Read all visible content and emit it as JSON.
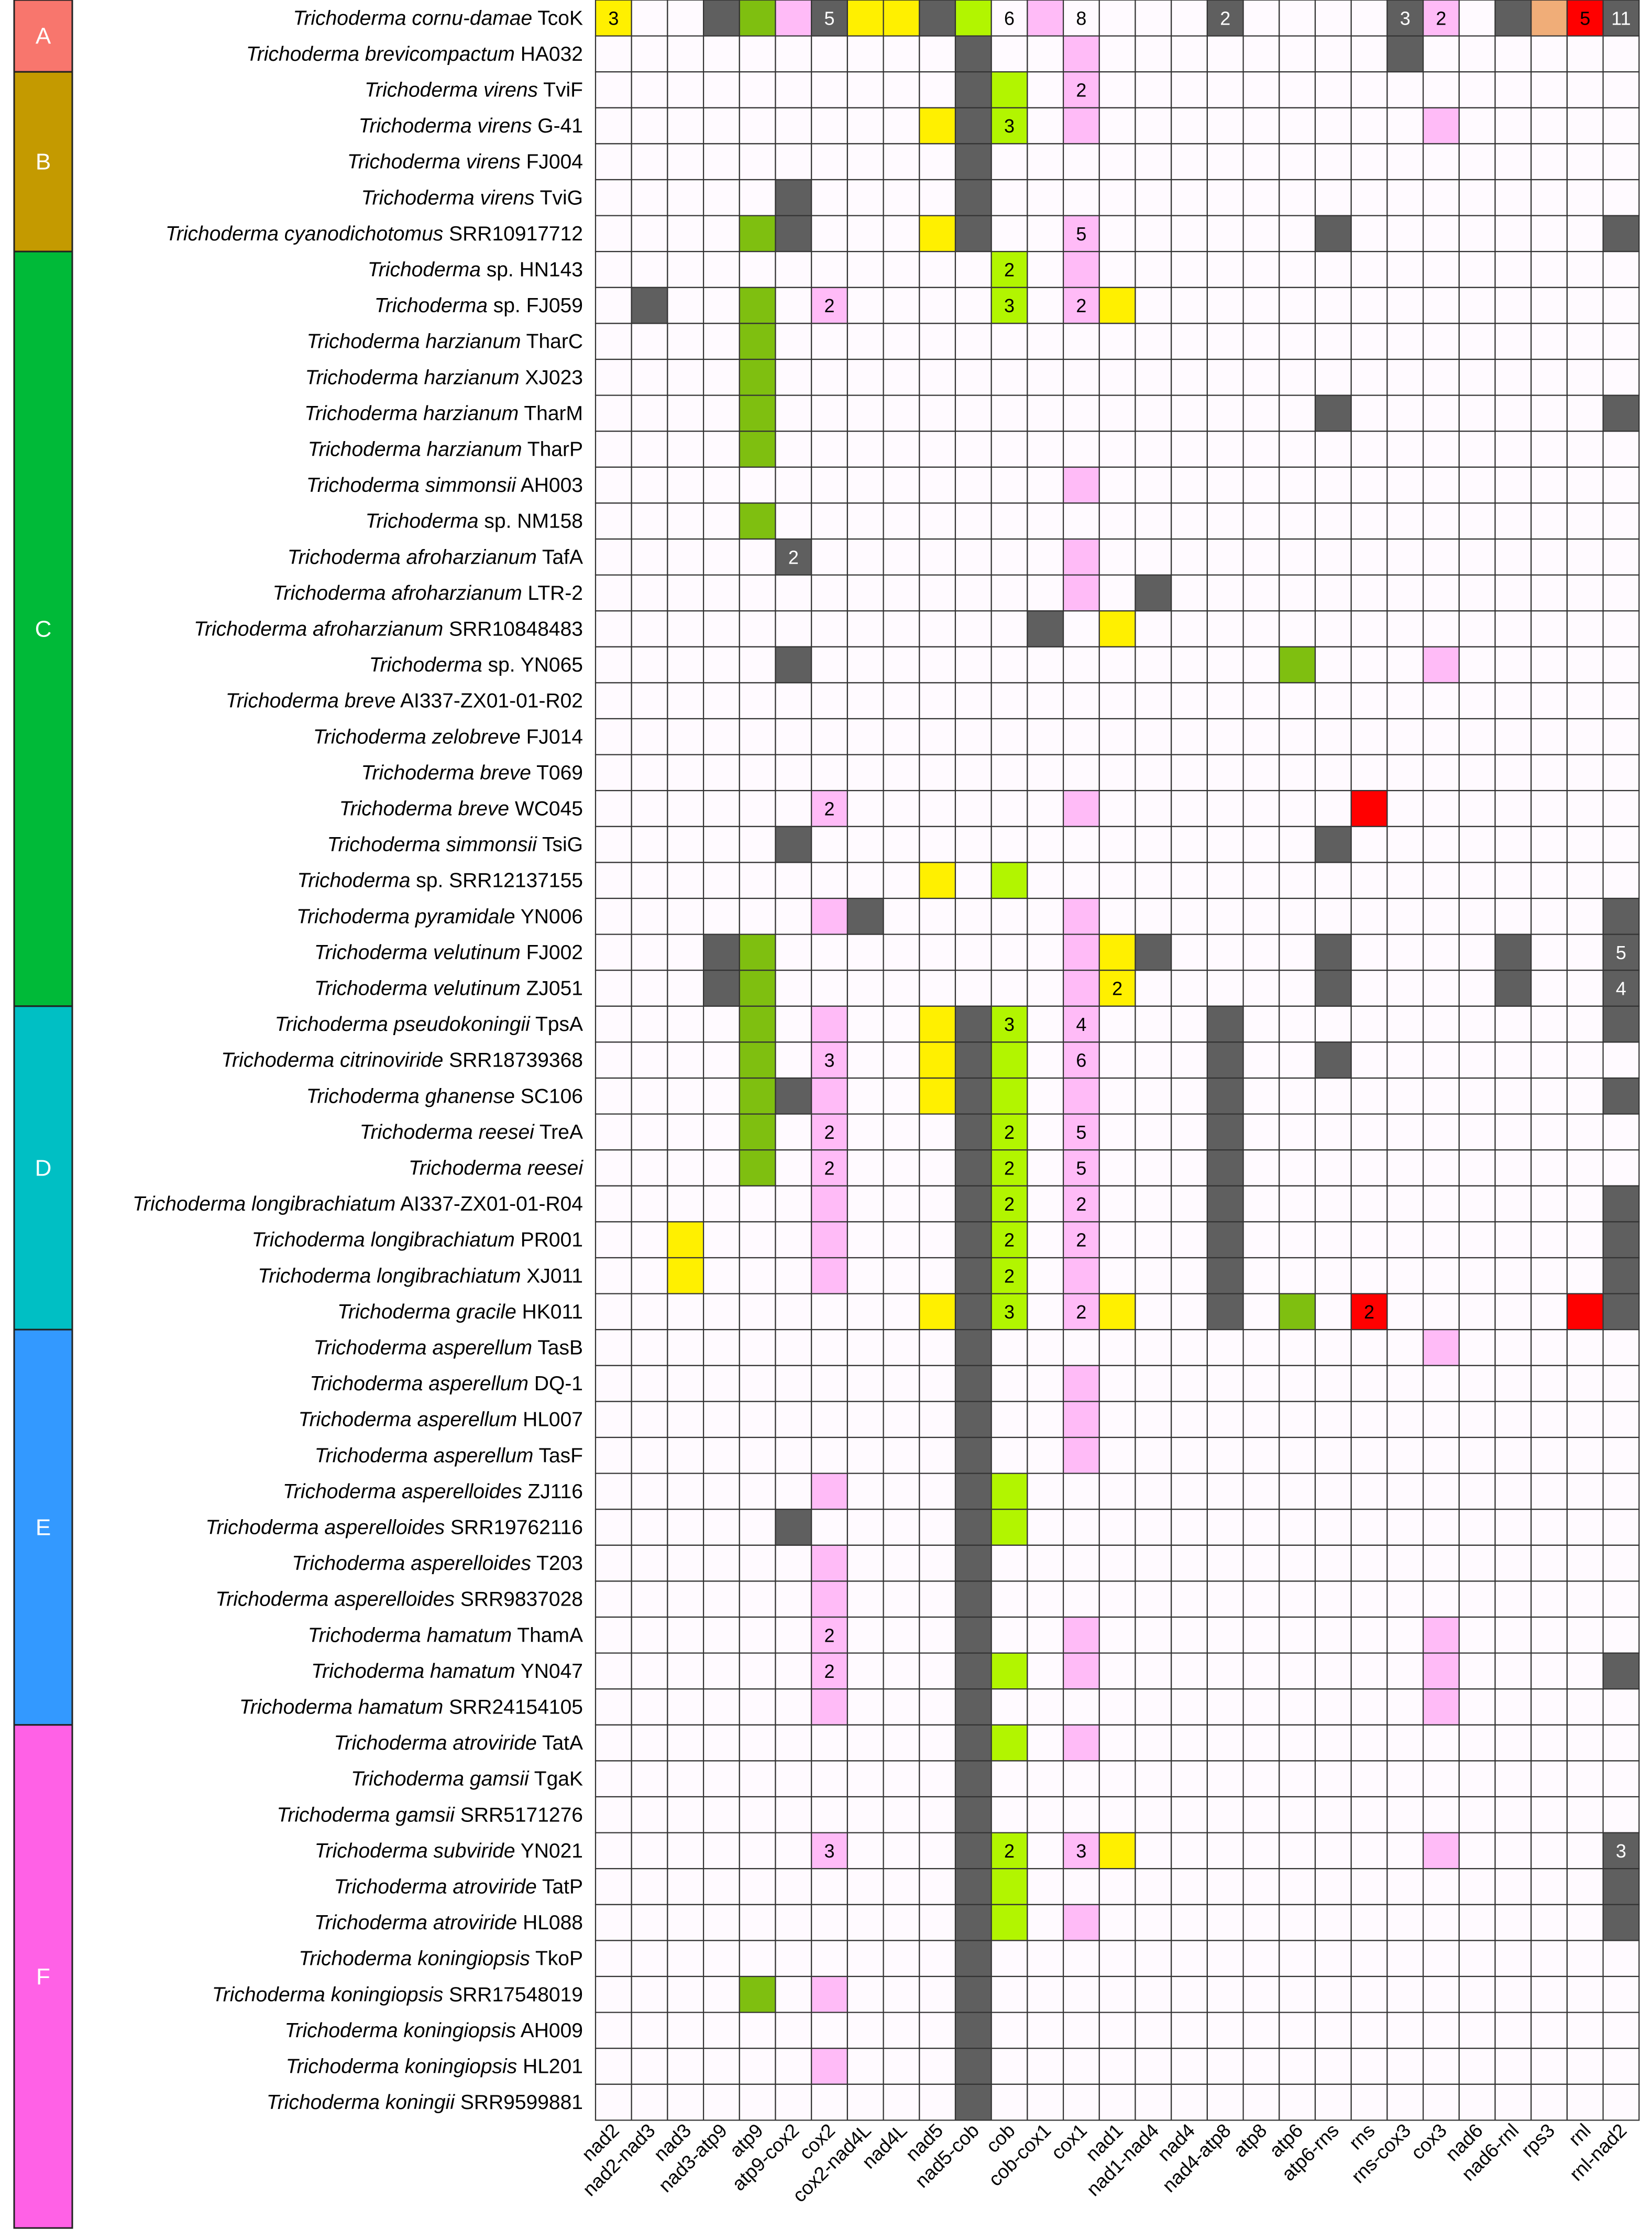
{
  "chart_data": {
    "type": "heatmap",
    "title": "",
    "xlabel": "",
    "ylabel": "",
    "legend": "none",
    "columns": [
      "nad2",
      "nad2-nad3",
      "nad3",
      "nad3-atp9",
      "atp9",
      "atp9-cox2",
      "cox2",
      "cox2-nad4L",
      "nad4L",
      "nad5",
      "nad5-cob",
      "cob",
      "cob-cox1",
      "cox1",
      "nad1",
      "nad1-nad4",
      "nad4",
      "nad4-atp8",
      "atp8",
      "atp6",
      "atp6-rns",
      "rns",
      "rns-cox3",
      "cox3",
      "nad6",
      "nad6-rnl",
      "rps3",
      "rnl",
      "rnl-nad2"
    ],
    "groups": [
      {
        "label": "A",
        "color": "#F8766D",
        "start": 0,
        "end": 1
      },
      {
        "label": "B",
        "color": "#C49A00",
        "start": 2,
        "end": 6
      },
      {
        "label": "C",
        "color": "#00BA38",
        "start": 7,
        "end": 27
      },
      {
        "label": "D",
        "color": "#00BFC4",
        "start": 28,
        "end": 36
      },
      {
        "label": "E",
        "color": "#3399FF",
        "start": 37,
        "end": 47
      },
      {
        "label": "F",
        "color": "#FF61E6",
        "start": 48,
        "end": 61
      }
    ],
    "color_key": {
      "W": "#FFFAFF",
      "G": "#5F5F5F",
      "Y": "#FFF000",
      "L": "#B2F500",
      "O": "#7FBF10",
      "P": "#FFBBF7",
      "R": "#FF0000",
      "T": "#F0AD78"
    },
    "rows": [
      {
        "species": "Trichoderma cornu-damae",
        "strain": "TcoK",
        "cells": "YWWGOPGYYGLWPWWWWGWWWWGPWGTRG",
        "counts": {
          "0": "3",
          "6": "5",
          "11": "6",
          "13": "8",
          "17": "2",
          "22": "3",
          "23": "2",
          "27": "5",
          "28": "11"
        }
      },
      {
        "species": "Trichoderma brevicompactum",
        "strain": "HA032",
        "cells": "WWWWWWWWWWGWWPWWWWWWWWGWWWWWW",
        "counts": {}
      },
      {
        "species": "Trichoderma virens",
        "strain": "TviF",
        "cells": "WWWWWWWWWWGLWPWWWWWWWWWWWWWWW",
        "counts": {
          "13": "2"
        }
      },
      {
        "species": "Trichoderma virens",
        "strain": "G-41",
        "cells": "WWWWWWWWWYGLWPWWWWWWWWWPWWWWW",
        "counts": {
          "11": "3"
        }
      },
      {
        "species": "Trichoderma virens",
        "strain": "FJ004",
        "cells": "WWWWWWWWWWGWWWWWWWWWWWWWWWWWW",
        "counts": {}
      },
      {
        "species": "Trichoderma virens",
        "strain": "TviG",
        "cells": "WWWWWGWWWWGWWWWWWWWWWWWWWWWWW",
        "counts": {}
      },
      {
        "species": "Trichoderma cyanodichotomus",
        "strain": "SRR10917712",
        "cells": "WWWWOGWWWYGWWPWWWWWWGWWWWWWWG",
        "counts": {
          "13": "5"
        }
      },
      {
        "species": "Trichoderma",
        "strain": "sp. HN143",
        "cells": "WWWWWWWWWWWLWPWWWWWWWWWWWWWWW",
        "counts": {
          "11": "2"
        }
      },
      {
        "species": "Trichoderma",
        "strain": "sp. FJ059",
        "cells": "WGWWOWPWWWWLWPYWWWWWWWWWWWWWW",
        "counts": {
          "6": "2",
          "11": "3",
          "13": "2"
        }
      },
      {
        "species": "Trichoderma harzianum",
        "strain": "TharC",
        "cells": "WWWWOWWWWWWWWWWWWWWWWWWWWWWWW",
        "counts": {}
      },
      {
        "species": "Trichoderma harzianum",
        "strain": "XJ023",
        "cells": "WWWWOWWWWWWWWWWWWWWWWWWWWWWWW",
        "counts": {}
      },
      {
        "species": "Trichoderma harzianum",
        "strain": "TharM",
        "cells": "WWWWOWWWWWWWWWWWWWWWGWWWWWWWG",
        "counts": {}
      },
      {
        "species": "Trichoderma harzianum",
        "strain": "TharP",
        "cells": "WWWWOWWWWWWWWWWWWWWWWWWWWWWWW",
        "counts": {}
      },
      {
        "species": "Trichoderma simmonsii",
        "strain": "AH003",
        "cells": "WWWWWWWWWWWWWPWWWWWWWWWWWWWWW",
        "counts": {}
      },
      {
        "species": "Trichoderma",
        "strain": "sp. NM158",
        "cells": "WWWWOWWWWWWWWWWWWWWWWWWWWWWWW",
        "counts": {}
      },
      {
        "species": "Trichoderma afroharzianum",
        "strain": "TafA",
        "cells": "WWWWWGWWWWWWWPWWWWWWWWWWWWWWW",
        "counts": {
          "5": "2"
        }
      },
      {
        "species": "Trichoderma afroharzianum",
        "strain": "LTR-2",
        "cells": "WWWWWWWWWWWWWPWGWWWWWWWWWWWWW",
        "counts": {}
      },
      {
        "species": "Trichoderma afroharzianum",
        "strain": "SRR10848483",
        "cells": "WWWWWWWWWWWWGWYWWWWWWWWWWWWWW",
        "counts": {}
      },
      {
        "species": "Trichoderma",
        "strain": "sp. YN065",
        "cells": "WWWWWGWWWWWWWWWWWWWOWWWPWWWWW",
        "counts": {}
      },
      {
        "species": "Trichoderma breve",
        "strain": "AI337-ZX01-01-R02",
        "cells": "WWWWWWWWWWWWWWWWWWWWWWWWWWWWW",
        "counts": {}
      },
      {
        "species": "Trichoderma zelobreve",
        "strain": "FJ014",
        "cells": "WWWWWWWWWWWWWWWWWWWWWWWWWWWWW",
        "counts": {}
      },
      {
        "species": "Trichoderma breve",
        "strain": "T069",
        "cells": "WWWWWWWWWWWWWWWWWWWWWWWWWWWWW",
        "counts": {}
      },
      {
        "species": "Trichoderma breve",
        "strain": "WC045",
        "cells": "WWWWWWPWWWWWWPWWWWWWWRWWWWWWW",
        "counts": {
          "6": "2"
        }
      },
      {
        "species": "Trichoderma simmonsii",
        "strain": "TsiG",
        "cells": "WWWWWGWWWWWWWWWWWWWWGWWWWWWWW",
        "counts": {}
      },
      {
        "species": "Trichoderma",
        "strain": "sp. SRR12137155",
        "cells": "WWWWWWWWWYWLWWWWWWWWWWWWWWWWW",
        "counts": {}
      },
      {
        "species": "Trichoderma pyramidale",
        "strain": "YN006",
        "cells": "WWWWWWPGWWWWWPWWWWWWWWWWWWWWG",
        "counts": {}
      },
      {
        "species": "Trichoderma velutinum",
        "strain": "FJ002",
        "cells": "WWWGOWWWWWWWWPYGWWWWGWWWWGWWG",
        "counts": {
          "28": "5"
        }
      },
      {
        "species": "Trichoderma velutinum",
        "strain": "ZJ051",
        "cells": "WWWGOWWWWWWWWPYWWWWWGWWWWGWWG",
        "counts": {
          "14": "2",
          "28": "4"
        }
      },
      {
        "species": "Trichoderma pseudokoningii",
        "strain": "TpsA",
        "cells": "WWWWOWPWWYGLWPWWWGWWWWWWWWWWG",
        "counts": {
          "11": "3",
          "13": "4"
        }
      },
      {
        "species": "Trichoderma citrinoviride",
        "strain": "SRR18739368",
        "cells": "WWWWOWPWWYGLWPWWWGWWGWWWWWWWW",
        "counts": {
          "6": "3",
          "13": "6"
        }
      },
      {
        "species": "Trichoderma ghanense",
        "strain": "SC106",
        "cells": "WWWWOGPWWYGLWPWWWGWWWWWWWWWWG",
        "counts": {}
      },
      {
        "species": "Trichoderma reesei",
        "strain": "TreA",
        "cells": "WWWWOWPWWWGLWPWWWGWWWWWWWWWWW",
        "counts": {
          "6": "2",
          "11": "2",
          "13": "5"
        }
      },
      {
        "species": "Trichoderma reesei",
        "strain": "",
        "cells": "WWWWOWPWWWGLWPWWWGWWWWWWWWWWW",
        "counts": {
          "6": "2",
          "11": "2",
          "13": "5"
        }
      },
      {
        "species": "Trichoderma longibrachiatum",
        "strain": "AI337-ZX01-01-R04",
        "cells": "WWWWWWPWWWGLWPWWWGWWWWWWWWWWG",
        "counts": {
          "11": "2",
          "13": "2"
        }
      },
      {
        "species": "Trichoderma longibrachiatum",
        "strain": "PR001",
        "cells": "WWYWWWPWWWGLWPWWWGWWWWWWWWWWG",
        "counts": {
          "11": "2",
          "13": "2"
        }
      },
      {
        "species": "Trichoderma longibrachiatum",
        "strain": "XJ011",
        "cells": "WWYWWWPWWWGLWPWWWGWWWWWWWWWWG",
        "counts": {
          "11": "2"
        }
      },
      {
        "species": "Trichoderma gracile",
        "strain": "HK011",
        "cells": "WWWWWWWWWYGLWPYWWGWOWRWWWWWRG",
        "counts": {
          "11": "3",
          "13": "2",
          "21": "2"
        }
      },
      {
        "species": "Trichoderma asperellum",
        "strain": "TasB",
        "cells": "WWWWWWWWWWGWWWWWWWWWWWWPWWWWW",
        "counts": {}
      },
      {
        "species": "Trichoderma asperellum",
        "strain": "DQ-1",
        "cells": "WWWWWWWWWWGWWPWWWWWWWWWWWWWWW",
        "counts": {}
      },
      {
        "species": "Trichoderma asperellum",
        "strain": "HL007",
        "cells": "WWWWWWWWWWGWWPWWWWWWWWWWWWWWW",
        "counts": {}
      },
      {
        "species": "Trichoderma asperellum",
        "strain": "TasF",
        "cells": "WWWWWWWWWWGWWPWWWWWWWWWWWWWWW",
        "counts": {}
      },
      {
        "species": "Trichoderma asperelloides",
        "strain": "ZJ116",
        "cells": "WWWWWWPWWWGLWWWWWWWWWWWWWWWWW",
        "counts": {}
      },
      {
        "species": "Trichoderma asperelloides",
        "strain": "SRR19762116",
        "cells": "WWWWWGWWWWGLWWWWWWWWWWWWWWWWW",
        "counts": {}
      },
      {
        "species": "Trichoderma asperelloides",
        "strain": "T203",
        "cells": "WWWWWWPWWWGWWWWWWWWWWWWWWWWWW",
        "counts": {}
      },
      {
        "species": "Trichoderma asperelloides",
        "strain": "SRR9837028",
        "cells": "WWWWWWPWWWGWWWWWWWWWWWWWWWWWW",
        "counts": {}
      },
      {
        "species": "Trichoderma hamatum",
        "strain": "ThamA",
        "cells": "WWWWWWPWWWGWWPWWWWWWWWWPWWWWW",
        "counts": {
          "6": "2"
        }
      },
      {
        "species": "Trichoderma hamatum",
        "strain": "YN047",
        "cells": "WWWWWWPWWWGLWPWWWWWWWWWPWWWWG",
        "counts": {
          "6": "2"
        }
      },
      {
        "species": "Trichoderma hamatum",
        "strain": "SRR24154105",
        "cells": "WWWWWWPWWWGWWWWWWWWWWWWPWWWWW",
        "counts": {}
      },
      {
        "species": "Trichoderma atroviride",
        "strain": "TatA",
        "cells": "WWWWWWWWWWGLWPWWWWWWWWWWWWWWW",
        "counts": {}
      },
      {
        "species": "Trichoderma gamsii",
        "strain": "TgaK",
        "cells": "WWWWWWWWWWGWWWWWWWWWWWWWWWWWW",
        "counts": {}
      },
      {
        "species": "Trichoderma gamsii",
        "strain": "SRR5171276",
        "cells": "WWWWWWWWWWGWWWWWWWWWWWWWWWWWW",
        "counts": {}
      },
      {
        "species": "Trichoderma subviride",
        "strain": "YN021",
        "cells": "WWWWWWPWWWGLWPYWWWWWWWWPWWWWG",
        "counts": {
          "6": "3",
          "11": "2",
          "13": "3",
          "28": "3"
        }
      },
      {
        "species": "Trichoderma atroviride",
        "strain": "TatP",
        "cells": "WWWWWWWWWWGLWWWWWWWWWWWWWWWWG",
        "counts": {}
      },
      {
        "species": "Trichoderma atroviride",
        "strain": "HL088",
        "cells": "WWWWWWWWWWGLWPWWWWWWWWWWWWWWG",
        "counts": {}
      },
      {
        "species": "Trichoderma koningiopsis",
        "strain": "TkoP",
        "cells": "WWWWWWWWWWGWWWWWWWWWWWWWWWWWW",
        "counts": {}
      },
      {
        "species": "Trichoderma koningiopsis",
        "strain": "SRR17548019",
        "cells": "WWWWOWPWWWGWWWWWWWWWWWWWWWWWW",
        "counts": {}
      },
      {
        "species": "Trichoderma koningiopsis",
        "strain": "AH009",
        "cells": "WWWWWWWWWWGWWWWWWWWWWWWWWWWWW",
        "counts": {}
      },
      {
        "species": "Trichoderma koningiopsis",
        "strain": "HL201",
        "cells": "WWWWWWPWWWGWWWWWWWWWWWWWWWWWW",
        "counts": {}
      },
      {
        "species": "Trichoderma koningii",
        "strain": "SRR9599881",
        "cells": "WWWWWWWWWWGWWWWWWWWWWWWWWWWWW",
        "counts": {}
      }
    ]
  }
}
